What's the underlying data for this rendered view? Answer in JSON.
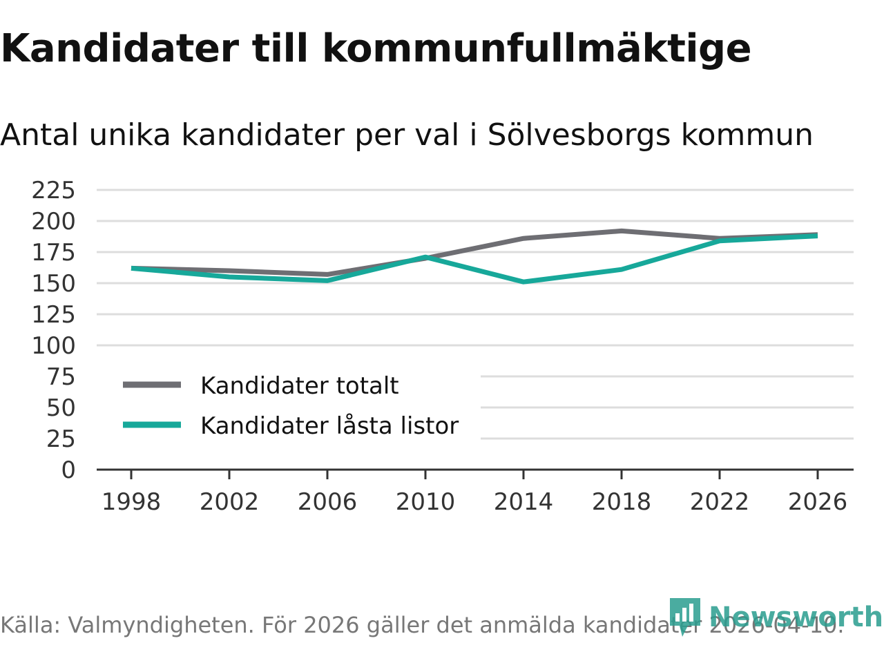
{
  "header": {
    "title": "Kandidater till kommunfullmäktige",
    "subtitle": "Antal unika kandidater per val i Sölvesborgs kommun"
  },
  "footer": {
    "source": "Källa: Valmyndigheten. För 2026 gäller det anmälda kandidater 2026-04-10.",
    "brand": "Newsworthy"
  },
  "colors": {
    "totalt": "#6e6e73",
    "lasta": "#17a89a",
    "grid": "#dddddd",
    "axis": "#333333",
    "brand": "#2a9d8f"
  },
  "chart_data": {
    "type": "line",
    "title": "Kandidater till kommunfullmäktige",
    "subtitle": "Antal unika kandidater per val i Sölvesborgs kommun",
    "x": [
      "1998",
      "2002",
      "2006",
      "2010",
      "2014",
      "2018",
      "2022",
      "2026"
    ],
    "yticks": [
      "0",
      "25",
      "50",
      "75",
      "100",
      "125",
      "150",
      "175",
      "200",
      "225"
    ],
    "ylim": [
      0,
      225
    ],
    "xlabel": "",
    "ylabel": "",
    "grid": true,
    "legend_position": "bottom-left",
    "series": [
      {
        "name": "Kandidater totalt",
        "values": [
          162,
          160,
          157,
          170,
          186,
          192,
          186,
          189
        ]
      },
      {
        "name": "Kandidater låsta listor",
        "values": [
          162,
          155,
          152,
          171,
          151,
          161,
          184,
          188
        ]
      }
    ]
  }
}
